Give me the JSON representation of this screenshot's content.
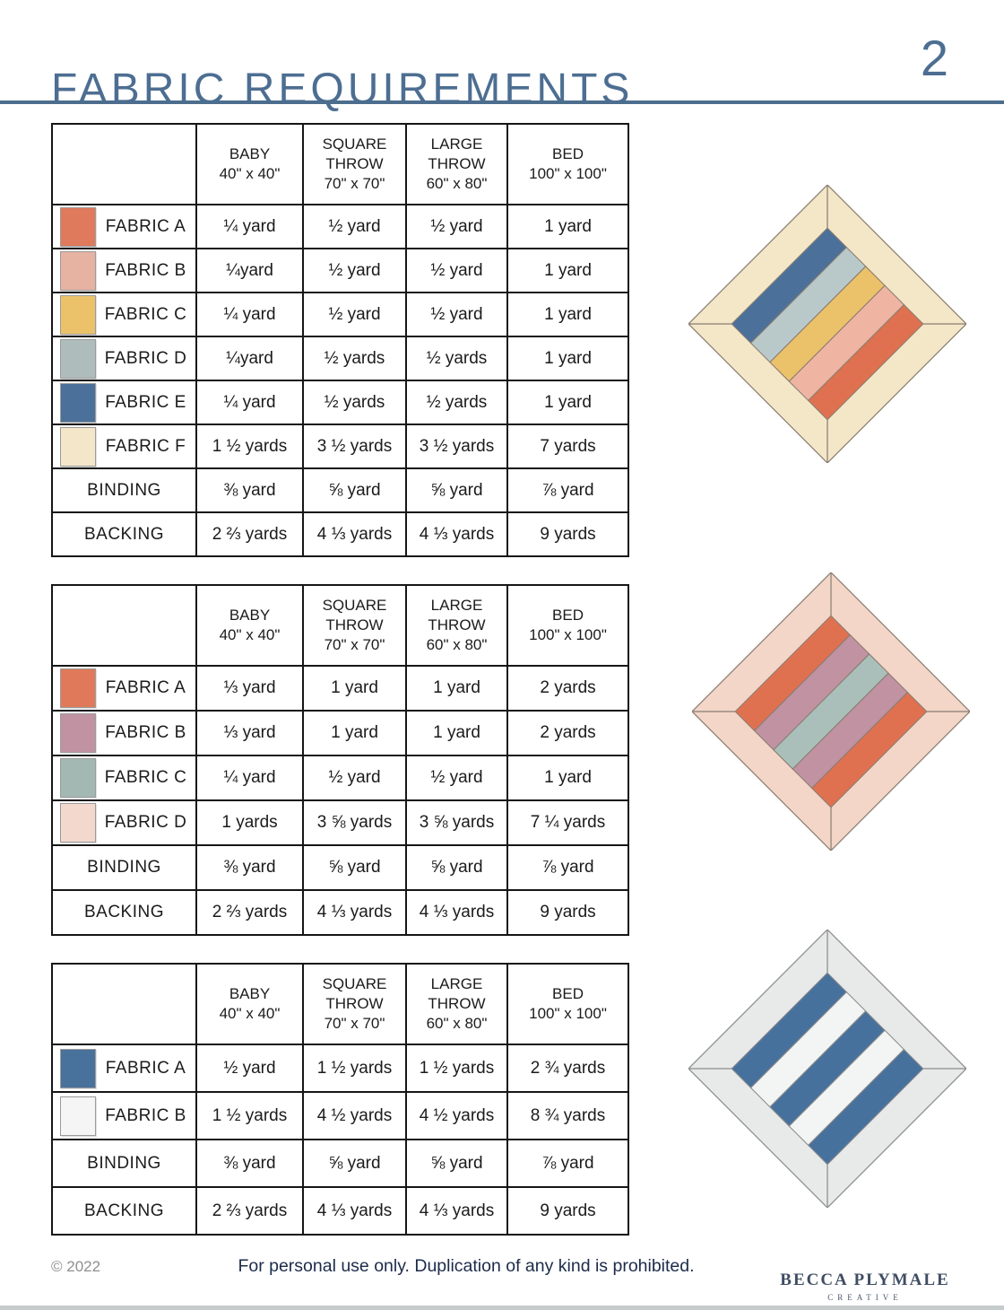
{
  "header": {
    "title": "FABRIC REQUIREMENTS",
    "page_number": "2",
    "accent_color": "#4c6d8e"
  },
  "tables": [
    {
      "columns": [
        {
          "label": "BABY",
          "size": "40\" x 40\""
        },
        {
          "label": "SQUARE THROW",
          "size": "70\" x 70\""
        },
        {
          "label": "LARGE THROW",
          "size": "60\" x 80\""
        },
        {
          "label": "BED",
          "size": "100\" x 100\""
        }
      ],
      "rows": [
        {
          "label": "FABRIC A",
          "swatch": "#e07a5c",
          "values": [
            "¼ yard",
            "½ yard",
            "½ yard",
            "1 yard"
          ]
        },
        {
          "label": "FABRIC B",
          "swatch": "#e6b2a1",
          "values": [
            "¼yard",
            "½ yard",
            "½ yard",
            "1 yard"
          ]
        },
        {
          "label": "FABRIC C",
          "swatch": "#ebc26a",
          "values": [
            "¼ yard",
            "½ yard",
            "½ yard",
            "1 yard"
          ]
        },
        {
          "label": "FABRIC D",
          "swatch": "#aebcbb",
          "values": [
            "¼yard",
            "½ yards",
            "½ yards",
            "1 yard"
          ]
        },
        {
          "label": "FABRIC E",
          "swatch": "#4b709a",
          "values": [
            "¼ yard",
            "½ yards",
            "½ yards",
            "1 yard"
          ]
        },
        {
          "label": "FABRIC F",
          "swatch": "#f4e7c9",
          "values": [
            "1 ½ yards",
            "3 ½ yards",
            "3 ½ yards",
            "7 yards"
          ]
        },
        {
          "label": "BINDING",
          "swatch": null,
          "values": [
            "⅜ yard",
            "⅝ yard",
            "⅝ yard",
            "⅞ yard"
          ]
        },
        {
          "label": "BACKING",
          "swatch": null,
          "values": [
            "2 ⅔ yards",
            "4 ⅓ yards",
            "4 ⅓ yards",
            "9 yards"
          ]
        }
      ]
    },
    {
      "columns": [
        {
          "label": "BABY",
          "size": "40\" x 40\""
        },
        {
          "label": "SQUARE THROW",
          "size": "70\" x 70\""
        },
        {
          "label": "LARGE THROW",
          "size": "60\" x 80\""
        },
        {
          "label": "BED",
          "size": "100\" x 100\""
        }
      ],
      "rows": [
        {
          "label": "FABRIC A",
          "swatch": "#e0795a",
          "values": [
            "⅓ yard",
            "1 yard",
            "1 yard",
            "2 yards"
          ]
        },
        {
          "label": "FABRIC B",
          "swatch": "#c092a2",
          "values": [
            "⅓ yard",
            "1 yard",
            "1 yard",
            "2 yards"
          ]
        },
        {
          "label": "FABRIC C",
          "swatch": "#a4b8b3",
          "values": [
            "¼ yard",
            "½ yard",
            "½ yard",
            "1 yard"
          ]
        },
        {
          "label": "FABRIC D",
          "swatch": "#f3d9cd",
          "values": [
            "1 yards",
            "3 ⅝ yards",
            "3 ⅝ yards",
            "7 ¼ yards"
          ]
        },
        {
          "label": "BINDING",
          "swatch": null,
          "values": [
            "⅜ yard",
            "⅝ yard",
            "⅝ yard",
            "⅞ yard"
          ]
        },
        {
          "label": "BACKING",
          "swatch": null,
          "values": [
            "2 ⅔ yards",
            "4 ⅓ yards",
            "4 ⅓ yards",
            "9 yards"
          ]
        }
      ]
    },
    {
      "columns": [
        {
          "label": "BABY",
          "size": "40\" x 40\""
        },
        {
          "label": "SQUARE THROW",
          "size": "70\" x 70\""
        },
        {
          "label": "LARGE THROW",
          "size": "60\" x 80\""
        },
        {
          "label": "BED",
          "size": "100\" x 100\""
        }
      ],
      "rows": [
        {
          "label": "FABRIC A",
          "swatch": "#48719c",
          "values": [
            "½ yard",
            "1 ½ yards",
            "1 ½ yards",
            "2 ¾ yards"
          ]
        },
        {
          "label": "FABRIC B",
          "swatch": "#f4f5f4",
          "values": [
            "1 ½ yards",
            "4 ½ yards",
            "4 ½ yards",
            "8 ¾ yards"
          ]
        },
        {
          "label": "BINDING",
          "swatch": null,
          "values": [
            "⅜ yard",
            "⅝ yard",
            "⅝ yard",
            "⅞ yard"
          ]
        },
        {
          "label": "BACKING",
          "swatch": null,
          "values": [
            "2 ⅔ yards",
            "4 ⅓ yards",
            "4 ⅓ yards",
            "9 yards"
          ]
        }
      ]
    }
  ],
  "quilts": [
    {
      "name": "striped quilt with cream border",
      "border": "#f4e7c8",
      "seam": "#8a7e72",
      "stripes": [
        "#4b709a",
        "#b9c9ca",
        "#ebc26a",
        "#efb5a2",
        "#df7150"
      ]
    },
    {
      "name": "striped quilt with pink border",
      "border": "#f3d6c7",
      "seam": "#8a7e72",
      "stripes": [
        "#df7150",
        "#c192a2",
        "#aabfba",
        "#c192a2",
        "#df7150"
      ]
    },
    {
      "name": "striped quilt with gray border",
      "border": "#e8eaea",
      "seam": "#8c8c8c",
      "stripes": [
        "#47719d",
        "#f3f5f4",
        "#47719d",
        "#f3f5f4",
        "#47719d"
      ]
    }
  ],
  "footer": {
    "copyright": "© 2022",
    "notice": "For personal use only. Duplication of any kind is prohibited.",
    "logo_line1": "BECCA PLYMALE",
    "logo_line2": "CREATIVE"
  }
}
